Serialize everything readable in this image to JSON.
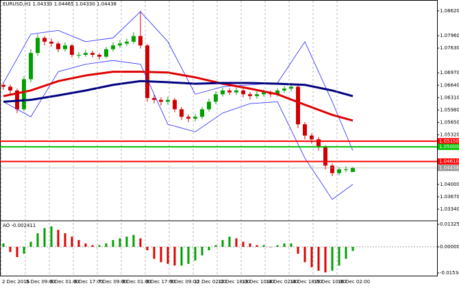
{
  "chart_data": [
    {
      "type": "candlestick",
      "title": "EURUSD,H1  1.04330 1.04465 1.04330 1.04438",
      "ylim": [
        1.0303,
        1.0891
      ],
      "yticks": [
        {
          "value": 1.0862,
          "label": "1.08620"
        },
        {
          "value": 1.0796,
          "label": "1.07960"
        },
        {
          "value": 1.0763,
          "label": "1.07630"
        },
        {
          "value": 1.0697,
          "label": "1.06970"
        },
        {
          "value": 1.0664,
          "label": "1.06640"
        },
        {
          "value": 1.0631,
          "label": "1.06310"
        },
        {
          "value": 1.0598,
          "label": "1.05980"
        },
        {
          "value": 1.0565,
          "label": "1.05650"
        },
        {
          "value": 1.0532,
          "label": "1.05320"
        },
        {
          "value": 1.04,
          "label": "1.04000"
        },
        {
          "value": 1.0367,
          "label": "1.03670"
        },
        {
          "value": 1.0334,
          "label": "1.03340"
        }
      ],
      "up_color": "#00a000",
      "down_color": "#d00000",
      "open": [
        1.0665,
        1.066,
        1.065,
        1.06,
        1.068,
        1.075,
        1.079,
        1.078,
        1.0775,
        1.076,
        1.077,
        1.0745,
        1.0745,
        1.075,
        1.0745,
        1.074,
        1.076,
        1.077,
        1.0775,
        1.078,
        1.0795,
        1.077,
        1.063,
        1.0625,
        1.062,
        1.0625,
        1.06,
        1.058,
        1.0575,
        1.058,
        1.06,
        1.062,
        1.064,
        1.065,
        1.0645,
        1.065,
        1.064,
        1.0635,
        1.064,
        1.0645,
        1.064,
        1.065,
        1.0655,
        1.066,
        1.056,
        1.053,
        1.052,
        1.05,
        1.045,
        1.043,
        1.044,
        1.0433
      ],
      "high": [
        1.0672,
        1.0666,
        1.0655,
        1.0688,
        1.076,
        1.08,
        1.0795,
        1.0788,
        1.078,
        1.0778,
        1.0774,
        1.0752,
        1.0758,
        1.0756,
        1.075,
        1.0766,
        1.0778,
        1.0784,
        1.0788,
        1.0805,
        1.0862,
        1.0774,
        1.0638,
        1.0632,
        1.0634,
        1.063,
        1.0606,
        1.0586,
        1.0588,
        1.0606,
        1.0628,
        1.0648,
        1.0658,
        1.0656,
        1.0658,
        1.0655,
        1.0646,
        1.0648,
        1.0652,
        1.065,
        1.0656,
        1.0662,
        1.067,
        1.0664,
        1.0566,
        1.0536,
        1.0526,
        1.0504,
        1.0456,
        1.0446,
        1.0448,
        1.04465
      ],
      "low": [
        1.0652,
        1.0642,
        1.059,
        1.0595,
        1.0672,
        1.0742,
        1.077,
        1.0766,
        1.0752,
        1.0754,
        1.0738,
        1.0736,
        1.074,
        1.0738,
        1.0732,
        1.0736,
        1.0754,
        1.0764,
        1.0768,
        1.0774,
        1.0762,
        1.062,
        1.0616,
        1.061,
        1.0612,
        1.0592,
        1.0572,
        1.0566,
        1.0568,
        1.0574,
        1.0594,
        1.0614,
        1.0634,
        1.0638,
        1.0638,
        1.0632,
        1.0626,
        1.0628,
        1.0634,
        1.0632,
        1.0634,
        1.0644,
        1.0648,
        1.055,
        1.052,
        1.0508,
        1.049,
        1.044,
        1.0422,
        1.0424,
        1.0432,
        1.0433
      ],
      "close": [
        1.066,
        1.065,
        1.06,
        1.068,
        1.075,
        1.079,
        1.078,
        1.0775,
        1.076,
        1.077,
        1.0745,
        1.0745,
        1.075,
        1.0745,
        1.074,
        1.076,
        1.077,
        1.0775,
        1.078,
        1.0795,
        1.077,
        1.063,
        1.0625,
        1.062,
        1.0625,
        1.06,
        1.058,
        1.0575,
        1.058,
        1.06,
        1.062,
        1.064,
        1.065,
        1.0645,
        1.065,
        1.064,
        1.0635,
        1.064,
        1.0645,
        1.064,
        1.065,
        1.0655,
        1.066,
        1.056,
        1.053,
        1.052,
        1.05,
        1.045,
        1.043,
        1.044,
        1.044,
        1.04438
      ],
      "lines": [
        {
          "color": "#2020ff",
          "width": 0.8,
          "x": [
            0,
            4,
            8,
            12,
            16,
            20,
            24,
            28,
            32,
            36,
            40,
            44,
            48,
            51
          ],
          "values": [
            1.067,
            1.08,
            1.081,
            1.078,
            1.079,
            1.086,
            1.078,
            1.064,
            1.066,
            1.0665,
            1.067,
            1.078,
            1.062,
            1.049
          ]
        },
        {
          "color": "#2020ff",
          "width": 0.8,
          "x": [
            0,
            4,
            8,
            12,
            16,
            20,
            24,
            28,
            32,
            36,
            40,
            44,
            48,
            51
          ],
          "values": [
            1.062,
            1.058,
            1.07,
            1.072,
            1.073,
            1.072,
            1.056,
            1.054,
            1.059,
            1.0615,
            1.062,
            1.047,
            1.036,
            1.04
          ]
        },
        {
          "color": "#e00000",
          "width": 3,
          "x": [
            0,
            4,
            8,
            12,
            16,
            20,
            24,
            28,
            32,
            36,
            40,
            44,
            48,
            51
          ],
          "values": [
            1.0635,
            1.065,
            1.0675,
            1.069,
            1.07,
            1.07,
            1.0698,
            1.0685,
            1.0668,
            1.0655,
            1.064,
            1.0612,
            1.0585,
            1.057
          ]
        },
        {
          "color": "#000080",
          "width": 3,
          "x": [
            0,
            4,
            8,
            12,
            16,
            20,
            24,
            28,
            32,
            36,
            40,
            44,
            48,
            51
          ],
          "values": [
            1.062,
            1.0625,
            1.0637,
            1.065,
            1.0665,
            1.0675,
            1.0672,
            1.0668,
            1.067,
            1.067,
            1.0668,
            1.0665,
            1.065,
            1.0635
          ]
        }
      ],
      "levels": [
        {
          "value": 1.0515,
          "label": "1.05150",
          "color": "#ff0000"
        },
        {
          "value": 1.05,
          "label": "1.05000",
          "color": "#00c000"
        },
        {
          "value": 1.0461,
          "label": "1.04610",
          "color": "#ff0000"
        }
      ],
      "price": {
        "value": 1.04438,
        "label": "1.04438",
        "color": "#999999"
      }
    },
    {
      "type": "bar",
      "title": "AO -0.002411",
      "ylim": [
        -0.0169,
        0.0153
      ],
      "yticks": [
        0.013256,
        {
          "value": 0,
          "label": "0.000000"
        },
        -0.015342
      ],
      "up_color": "#00a000",
      "down_color": "#e00000",
      "values": [
        0.002,
        -0.003,
        -0.006,
        -0.004,
        0.003,
        0.008,
        0.011,
        0.012,
        0.01,
        0.008,
        0.006,
        0.004,
        0.002,
        0.001,
        0.001,
        0.002,
        0.004,
        0.005,
        0.006,
        0.007,
        0.005,
        -0.002,
        -0.007,
        -0.009,
        -0.01,
        -0.011,
        -0.011,
        -0.01,
        -0.008,
        -0.005,
        -0.002,
        0.001,
        0.004,
        0.006,
        0.005,
        0.003,
        0.002,
        0.001,
        0.001,
        0,
        0.001,
        0.002,
        0.002,
        -0.004,
        -0.009,
        -0.012,
        -0.014,
        -0.015,
        -0.014,
        -0.011,
        -0.007,
        -0.002411
      ],
      "x_labels": [
        "2 Dec 2016",
        "5 Dec 09:00",
        "6 Dec 01:00",
        "6 Dec 17:00",
        "7 Dec 09:00",
        "8 Dec 01:00",
        "8 Dec 17:00",
        "9 Dec 09:00",
        "12 Dec 02:00",
        "12 Dec 18:00",
        "13 Dec 10:00",
        "14 Dec 02:00",
        "14 Dec 18:00",
        "15 Dec 10:00",
        "16 Dec 02:00"
      ]
    }
  ]
}
